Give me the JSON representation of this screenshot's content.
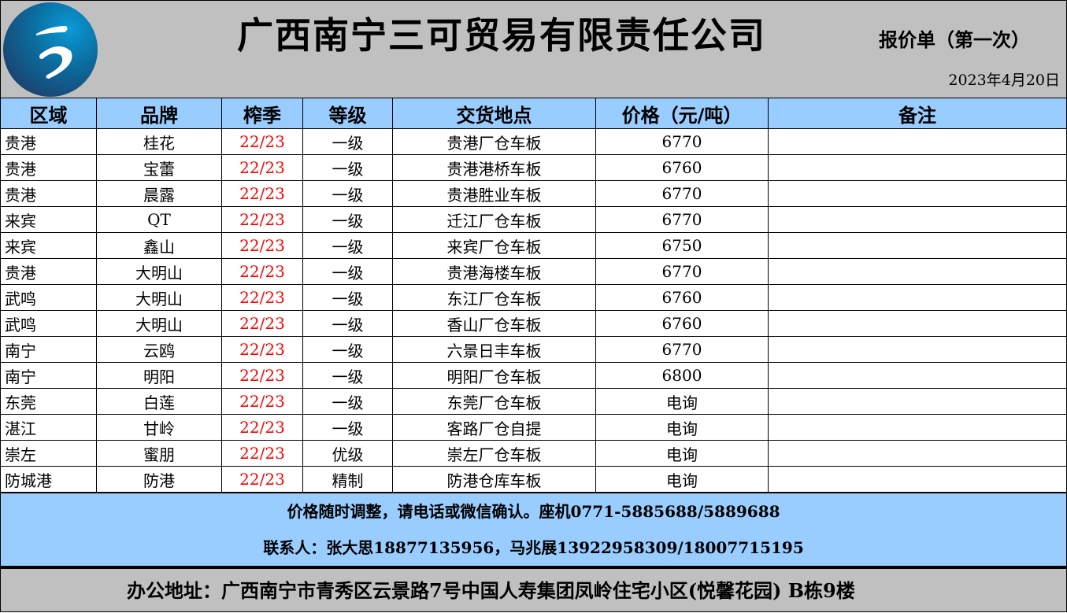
{
  "header": {
    "company": "广西南宁三可贸易有限责任公司",
    "subtitle": "报价单（第一次）",
    "date": "2023年4月20日",
    "logo_glyph": "う"
  },
  "columns": [
    "区域",
    "品牌",
    "榨季",
    "等级",
    "交货地点",
    "价格（元/吨）",
    "备注"
  ],
  "rows": [
    [
      "贵港",
      "桂花",
      "22/23",
      "一级",
      "贵港厂仓车板",
      "6770",
      ""
    ],
    [
      "贵港",
      "宝蕾",
      "22/23",
      "一级",
      "贵港港桥车板",
      "6760",
      ""
    ],
    [
      "贵港",
      "晨露",
      "22/23",
      "一级",
      "贵港胜业车板",
      "6770",
      ""
    ],
    [
      "来宾",
      "QT",
      "22/23",
      "一级",
      "迁江厂仓车板",
      "6770",
      ""
    ],
    [
      "来宾",
      "鑫山",
      "22/23",
      "一级",
      "来宾厂仓车板",
      "6750",
      ""
    ],
    [
      "贵港",
      "大明山",
      "22/23",
      "一级",
      "贵港海楼车板",
      "6770",
      ""
    ],
    [
      "武鸣",
      "大明山",
      "22/23",
      "一级",
      "东江厂仓车板",
      "6760",
      ""
    ],
    [
      "武鸣",
      "大明山",
      "22/23",
      "一级",
      "香山厂仓车板",
      "6760",
      ""
    ],
    [
      "南宁",
      "云鸥",
      "22/23",
      "一级",
      "六景日丰车板",
      "6770",
      ""
    ],
    [
      "南宁",
      "明阳",
      "22/23",
      "一级",
      "明阳厂仓车板",
      "6800",
      ""
    ],
    [
      "东莞",
      "白莲",
      "22/23",
      "一级",
      "东莞厂仓车板",
      "电询",
      ""
    ],
    [
      "湛江",
      "甘岭",
      "22/23",
      "一级",
      "客路厂仓自提",
      "电询",
      ""
    ],
    [
      "崇左",
      "蜜朋",
      "22/23",
      "优级",
      "崇左厂仓车板",
      "电询",
      ""
    ],
    [
      "防城港",
      "防港",
      "22/23",
      "精制",
      "防港仓库车板",
      "电询",
      ""
    ]
  ],
  "footer": {
    "note1": "价格随时调整，请电话或微信确认。座机0771-5885688/5889688",
    "note2": "联系人：张大思18877135956，马兆展13922958309/18007715195",
    "address": "办公地址：广西南宁市青秀区云景路7号中国人寿集团凤岭住宅小区(悦馨花园) B栋9楼"
  },
  "colors": {
    "header_bg": "#99ccff",
    "title_bg": "#c0c0c0",
    "season_text": "#ff0000"
  }
}
